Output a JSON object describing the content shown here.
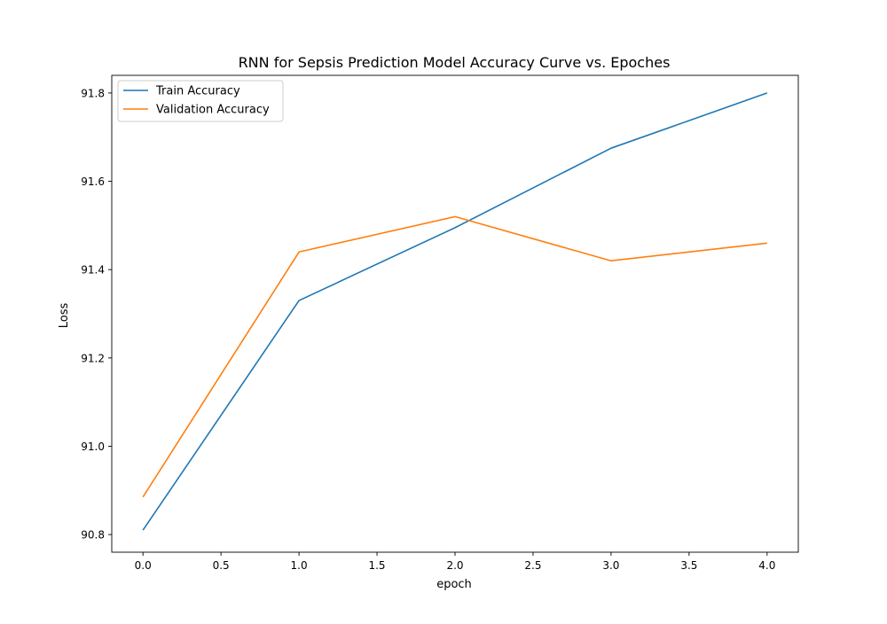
{
  "chart_data": {
    "type": "line",
    "title": "RNN for Sepsis Prediction Model Accuracy Curve vs. Epoches",
    "xlabel": "epoch",
    "ylabel": "Loss",
    "xlim": [
      -0.2,
      4.2
    ],
    "ylim": [
      90.76,
      91.84
    ],
    "xticks": [
      0.0,
      0.5,
      1.0,
      1.5,
      2.0,
      2.5,
      3.0,
      3.5,
      4.0
    ],
    "xtick_labels": [
      "0.0",
      "0.5",
      "1.0",
      "1.5",
      "2.0",
      "2.5",
      "3.0",
      "3.5",
      "4.0"
    ],
    "yticks": [
      90.8,
      91.0,
      91.2,
      91.4,
      91.6,
      91.8
    ],
    "ytick_labels": [
      "90.8",
      "91.0",
      "91.2",
      "91.4",
      "91.6",
      "91.8"
    ],
    "grid": false,
    "legend_position": "top-left",
    "x": [
      0,
      1,
      2,
      3,
      4
    ],
    "series": [
      {
        "name": "Train Accuracy",
        "color": "#1f77b4",
        "values": [
          90.81,
          91.33,
          91.495,
          91.675,
          91.8
        ]
      },
      {
        "name": "Validation Accuracy",
        "color": "#ff7f0e",
        "values": [
          90.885,
          91.44,
          91.52,
          91.42,
          91.46
        ]
      }
    ]
  }
}
